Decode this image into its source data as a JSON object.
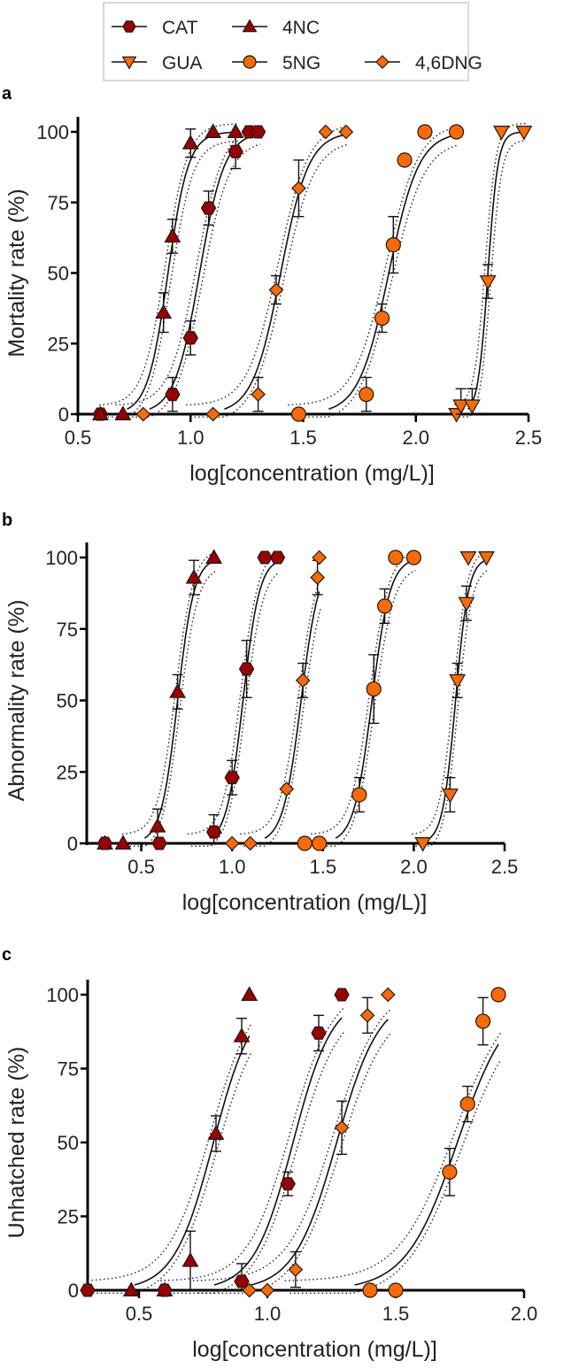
{
  "legend": {
    "items": [
      {
        "name": "CAT",
        "marker": "hexagon",
        "color": "#9b0000"
      },
      {
        "name": "4NC",
        "marker": "triangle-up",
        "color": "#9b0000"
      },
      {
        "name": "GUA",
        "marker": "triangle-down",
        "color": "#ff6a00"
      },
      {
        "name": "5NG",
        "marker": "circle",
        "color": "#ff6a00"
      },
      {
        "name": "4,6DNG",
        "marker": "diamond",
        "color": "#ff6a00"
      }
    ]
  },
  "chart_data": [
    {
      "panel": "a",
      "type": "scatter",
      "fit": "sigmoidal dose-response with 95% confidence bands (dotted)",
      "xlabel": "log[concentration (mg/L)]",
      "ylabel": "Mortality rate (%)",
      "xlim": [
        0.5,
        2.5
      ],
      "ylim": [
        0,
        100
      ],
      "xticks": [
        "0.5",
        "1.0",
        "1.5",
        "2.0",
        "2.5"
      ],
      "yticks": [
        "0",
        "25",
        "50",
        "75",
        "100"
      ],
      "series": [
        {
          "name": "CAT",
          "x": [
            0.6,
            0.92,
            1.0,
            1.08,
            1.2,
            1.26,
            1.3
          ],
          "y": [
            0,
            7,
            27,
            73,
            93,
            100,
            100
          ],
          "err": [
            0,
            6,
            6,
            6,
            6,
            0,
            0
          ],
          "ec50": 1.04,
          "slope": 18
        },
        {
          "name": "4NC",
          "x": [
            0.6,
            0.7,
            0.88,
            0.92,
            1.0,
            1.1,
            1.2
          ],
          "y": [
            0,
            0,
            36,
            63,
            96,
            100,
            100
          ],
          "err": [
            0,
            0,
            7,
            6,
            5,
            0,
            0
          ],
          "ec50": 0.9,
          "slope": 22
        },
        {
          "name": "4,6DNG",
          "x": [
            0.79,
            1.1,
            1.3,
            1.38,
            1.48,
            1.6,
            1.69
          ],
          "y": [
            0,
            0,
            7,
            44,
            80,
            100,
            100
          ],
          "err": [
            0,
            0,
            6,
            5,
            10,
            0,
            0
          ],
          "ec50": 1.4,
          "slope": 16
        },
        {
          "name": "5NG",
          "x": [
            1.48,
            1.78,
            1.85,
            1.9,
            1.95,
            2.04,
            2.18
          ],
          "y": [
            0,
            7,
            34,
            60,
            90,
            100,
            100
          ],
          "err": [
            0,
            6,
            5,
            10,
            0,
            0,
            0
          ],
          "ec50": 1.88,
          "slope": 15
        },
        {
          "name": "GUA",
          "x": [
            2.18,
            2.2,
            2.25,
            2.32,
            2.38,
            2.48
          ],
          "y": [
            0,
            3,
            3,
            47,
            100,
            100
          ],
          "err": [
            0,
            6,
            6,
            6,
            0,
            0
          ],
          "ec50": 2.32,
          "slope": 45
        }
      ]
    },
    {
      "panel": "b",
      "type": "scatter",
      "fit": "sigmoidal dose-response with 95% confidence bands (dotted)",
      "xlabel": "log[concentration (mg/L)]",
      "ylabel": "Abnormality rate (%)",
      "xlim": [
        0.2,
        2.5
      ],
      "ylim": [
        0,
        100
      ],
      "xticks": [
        "0.5",
        "1.0",
        "1.5",
        "2.0",
        "2.5"
      ],
      "yticks": [
        "0",
        "25",
        "50",
        "75",
        "100"
      ],
      "series": [
        {
          "name": "4NC",
          "x": [
            0.3,
            0.4,
            0.59,
            0.7,
            0.79,
            0.9
          ],
          "y": [
            0,
            0,
            6,
            53,
            93,
            100
          ],
          "err": [
            0,
            0,
            6,
            6,
            6,
            0
          ],
          "ec50": 0.7,
          "slope": 22
        },
        {
          "name": "CAT",
          "x": [
            0.3,
            0.6,
            0.9,
            1.0,
            1.08,
            1.18,
            1.25
          ],
          "y": [
            0,
            0,
            4,
            23,
            61,
            100,
            100
          ],
          "err": [
            0,
            0,
            6,
            6,
            10,
            0,
            0
          ],
          "ec50": 1.06,
          "slope": 22
        },
        {
          "name": "4,6DNG",
          "x": [
            1.0,
            1.1,
            1.3,
            1.39,
            1.47,
            1.48
          ],
          "y": [
            0,
            0,
            19,
            57,
            93,
            100
          ],
          "err": [
            0,
            0,
            0,
            6,
            6,
            0
          ],
          "ec50": 1.38,
          "slope": 20
        },
        {
          "name": "5NG",
          "x": [
            1.4,
            1.48,
            1.7,
            1.78,
            1.84,
            1.9,
            2.0
          ],
          "y": [
            0,
            0,
            17,
            54,
            83,
            100,
            100
          ],
          "err": [
            0,
            0,
            6,
            12,
            6,
            0,
            0
          ],
          "ec50": 1.77,
          "slope": 20
        },
        {
          "name": "GUA",
          "x": [
            2.05,
            2.2,
            2.24,
            2.29,
            2.3,
            2.4
          ],
          "y": [
            0,
            17,
            57,
            84,
            100,
            100
          ],
          "err": [
            0,
            6,
            6,
            6,
            0,
            0
          ],
          "ec50": 2.23,
          "slope": 28
        }
      ]
    },
    {
      "panel": "c",
      "type": "scatter",
      "fit": "sigmoidal dose-response with 95% confidence bands (dotted)",
      "xlabel": "log[concentration (mg/L)]",
      "ylabel": "Unhatched rate (%)",
      "xlim": [
        0.3,
        2.0
      ],
      "ylim": [
        0,
        100
      ],
      "xticks": [
        "0.5",
        "1.0",
        "1.5",
        "2.0"
      ],
      "yticks": [
        "0",
        "25",
        "50",
        "75",
        "100"
      ],
      "series": [
        {
          "name": "4NC",
          "x": [
            0.47,
            0.6,
            0.7,
            0.8,
            0.9,
            0.93
          ],
          "y": [
            0,
            0,
            10,
            53,
            86,
            100
          ],
          "err": [
            0,
            0,
            10,
            6,
            6,
            0
          ],
          "ec50": 0.79,
          "slope": 13
        },
        {
          "name": "CAT",
          "x": [
            0.3,
            0.6,
            0.9,
            1.08,
            1.2,
            1.29
          ],
          "y": [
            0,
            0,
            3,
            36,
            87,
            100
          ],
          "err": [
            0,
            0,
            6,
            4,
            6,
            0
          ],
          "ec50": 1.1,
          "slope": 13
        },
        {
          "name": "4,6DNG",
          "x": [
            0.93,
            1.0,
            1.11,
            1.29,
            1.39,
            1.47
          ],
          "y": [
            0,
            0,
            7,
            55,
            93,
            100
          ],
          "err": [
            0,
            0,
            6,
            9,
            6,
            0
          ],
          "ec50": 1.27,
          "slope": 12
        },
        {
          "name": "5NG",
          "x": [
            1.4,
            1.5,
            1.71,
            1.78,
            1.84,
            1.9
          ],
          "y": [
            0,
            0,
            40,
            63,
            91,
            100
          ],
          "err": [
            0,
            0,
            8,
            6,
            8,
            0
          ],
          "ec50": 1.74,
          "slope": 10
        }
      ]
    }
  ]
}
